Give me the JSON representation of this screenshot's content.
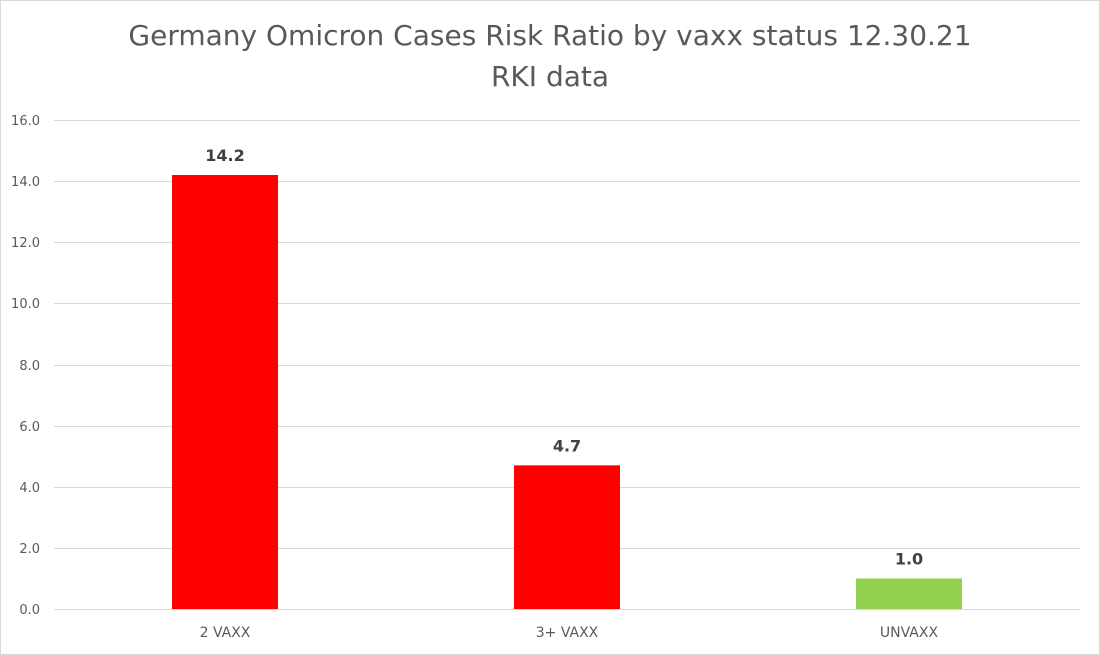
{
  "chart_data": {
    "type": "bar",
    "title": "Germany Omicron Cases Risk Ratio by vaxx status 12.30.21",
    "subtitle": "RKI data",
    "categories": [
      "2 VAXX",
      "3+ VAXX",
      "UNVAXX"
    ],
    "values": [
      14.2,
      4.7,
      1.0
    ],
    "data_labels": [
      "14.2",
      "4.7",
      "1.0"
    ],
    "bar_colors": [
      "#ff0000",
      "#ff0000",
      "#92d050"
    ],
    "ylim": [
      0,
      16
    ],
    "yticks": [
      "0.0",
      "2.0",
      "4.0",
      "6.0",
      "8.0",
      "10.0",
      "12.0",
      "14.0",
      "16.0"
    ],
    "grid": true,
    "legend": "none",
    "xlabel": "",
    "ylabel": ""
  }
}
